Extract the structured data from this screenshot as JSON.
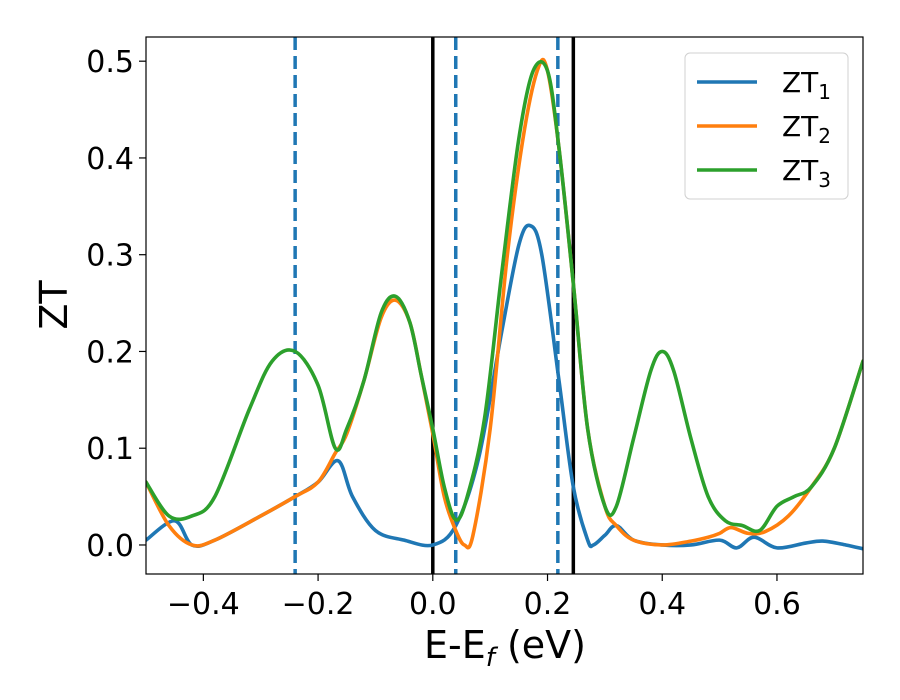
{
  "chart_data": {
    "type": "line",
    "title": "",
    "xlabel": {
      "base": "E-E",
      "sub": "f",
      "suffix": " (eV)"
    },
    "ylabel": "ZT",
    "xlim": [
      -0.5,
      0.75
    ],
    "ylim": [
      -0.03,
      0.525
    ],
    "x_ticks": [
      -0.4,
      -0.2,
      0.0,
      0.2,
      0.4,
      0.6
    ],
    "x_tick_labels": [
      "−0.4",
      "−0.2",
      "0.0",
      "0.2",
      "0.4",
      "0.6"
    ],
    "y_ticks": [
      0.0,
      0.1,
      0.2,
      0.3,
      0.4,
      0.5
    ],
    "y_tick_labels": [
      "0.0",
      "0.1",
      "0.2",
      "0.3",
      "0.4",
      "0.5"
    ],
    "grid": false,
    "legend_position": "top-right",
    "vertical_lines": [
      {
        "x": 0.0,
        "style": "solid",
        "color": "#000000"
      },
      {
        "x": 0.245,
        "style": "solid",
        "color": "#000000"
      },
      {
        "x": -0.24,
        "style": "dashed",
        "color": "#1f77b4"
      },
      {
        "x": 0.04,
        "style": "dashed",
        "color": "#1f77b4"
      },
      {
        "x": 0.218,
        "style": "dashed",
        "color": "#1f77b4"
      }
    ],
    "series": [
      {
        "name": "ZT",
        "sub": "1",
        "color": "#1f77b4",
        "points": [
          [
            -0.5,
            0.005
          ],
          [
            -0.45,
            0.025
          ],
          [
            -0.42,
            0.0
          ],
          [
            -0.38,
            0.005
          ],
          [
            -0.3,
            0.03
          ],
          [
            -0.24,
            0.05
          ],
          [
            -0.2,
            0.065
          ],
          [
            -0.165,
            0.087
          ],
          [
            -0.14,
            0.05
          ],
          [
            -0.1,
            0.015
          ],
          [
            -0.05,
            0.005
          ],
          [
            0.0,
            0.0
          ],
          [
            0.04,
            0.02
          ],
          [
            0.08,
            0.09
          ],
          [
            0.12,
            0.22
          ],
          [
            0.15,
            0.31
          ],
          [
            0.17,
            0.33
          ],
          [
            0.19,
            0.3
          ],
          [
            0.22,
            0.17
          ],
          [
            0.245,
            0.06
          ],
          [
            0.27,
            0.005
          ],
          [
            0.28,
            0.0
          ],
          [
            0.3,
            0.01
          ],
          [
            0.32,
            0.02
          ],
          [
            0.35,
            0.005
          ],
          [
            0.4,
            0.0
          ],
          [
            0.45,
            0.0
          ],
          [
            0.5,
            0.005
          ],
          [
            0.53,
            -0.003
          ],
          [
            0.56,
            0.008
          ],
          [
            0.6,
            -0.003
          ],
          [
            0.65,
            0.002
          ],
          [
            0.68,
            0.004
          ],
          [
            0.72,
            0.0
          ],
          [
            0.75,
            -0.004
          ]
        ]
      },
      {
        "name": "ZT",
        "sub": "2",
        "color": "#ff7f0e",
        "points": [
          [
            -0.5,
            0.065
          ],
          [
            -0.46,
            0.02
          ],
          [
            -0.42,
            0.0
          ],
          [
            -0.38,
            0.005
          ],
          [
            -0.3,
            0.03
          ],
          [
            -0.24,
            0.05
          ],
          [
            -0.2,
            0.065
          ],
          [
            -0.17,
            0.095
          ],
          [
            -0.15,
            0.115
          ],
          [
            -0.12,
            0.17
          ],
          [
            -0.09,
            0.235
          ],
          [
            -0.065,
            0.253
          ],
          [
            -0.04,
            0.23
          ],
          [
            -0.02,
            0.175
          ],
          [
            0.0,
            0.115
          ],
          [
            0.02,
            0.05
          ],
          [
            0.04,
            0.015
          ],
          [
            0.055,
            0.0
          ],
          [
            0.07,
            0.01
          ],
          [
            0.1,
            0.12
          ],
          [
            0.13,
            0.3
          ],
          [
            0.16,
            0.43
          ],
          [
            0.185,
            0.495
          ],
          [
            0.2,
            0.49
          ],
          [
            0.22,
            0.41
          ],
          [
            0.245,
            0.27
          ],
          [
            0.27,
            0.12
          ],
          [
            0.3,
            0.04
          ],
          [
            0.32,
            0.02
          ],
          [
            0.35,
            0.005
          ],
          [
            0.4,
            0.0
          ],
          [
            0.45,
            0.004
          ],
          [
            0.48,
            0.008
          ],
          [
            0.5,
            0.012
          ],
          [
            0.52,
            0.018
          ],
          [
            0.55,
            0.012
          ],
          [
            0.58,
            0.014
          ],
          [
            0.62,
            0.03
          ],
          [
            0.66,
            0.06
          ],
          [
            0.7,
            0.1
          ],
          [
            0.75,
            0.19
          ]
        ]
      },
      {
        "name": "ZT",
        "sub": "3",
        "color": "#2ca02c",
        "points": [
          [
            -0.5,
            0.065
          ],
          [
            -0.46,
            0.03
          ],
          [
            -0.42,
            0.03
          ],
          [
            -0.38,
            0.05
          ],
          [
            -0.32,
            0.14
          ],
          [
            -0.28,
            0.19
          ],
          [
            -0.24,
            0.2
          ],
          [
            -0.2,
            0.165
          ],
          [
            -0.17,
            0.1
          ],
          [
            -0.15,
            0.12
          ],
          [
            -0.12,
            0.17
          ],
          [
            -0.09,
            0.24
          ],
          [
            -0.065,
            0.257
          ],
          [
            -0.04,
            0.23
          ],
          [
            -0.02,
            0.175
          ],
          [
            0.0,
            0.12
          ],
          [
            0.02,
            0.06
          ],
          [
            0.04,
            0.026
          ],
          [
            0.06,
            0.05
          ],
          [
            0.09,
            0.13
          ],
          [
            0.12,
            0.28
          ],
          [
            0.15,
            0.42
          ],
          [
            0.175,
            0.49
          ],
          [
            0.2,
            0.49
          ],
          [
            0.22,
            0.41
          ],
          [
            0.245,
            0.27
          ],
          [
            0.27,
            0.12
          ],
          [
            0.3,
            0.04
          ],
          [
            0.32,
            0.04
          ],
          [
            0.35,
            0.11
          ],
          [
            0.38,
            0.18
          ],
          [
            0.4,
            0.2
          ],
          [
            0.42,
            0.18
          ],
          [
            0.45,
            0.11
          ],
          [
            0.48,
            0.05
          ],
          [
            0.51,
            0.025
          ],
          [
            0.54,
            0.02
          ],
          [
            0.57,
            0.015
          ],
          [
            0.6,
            0.04
          ],
          [
            0.63,
            0.05
          ],
          [
            0.66,
            0.06
          ],
          [
            0.7,
            0.1
          ],
          [
            0.75,
            0.19
          ]
        ]
      }
    ]
  }
}
